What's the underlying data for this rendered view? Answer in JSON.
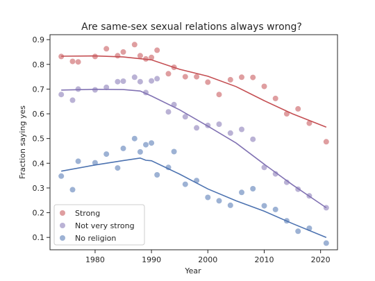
{
  "chart_data": {
    "type": "scatter",
    "title": "Are same-sex sexual relations always wrong?",
    "xlabel": "Year",
    "ylabel": "Fraction saying yes",
    "xlim": [
      1972,
      2023
    ],
    "ylim": [
      0.05,
      0.92
    ],
    "xticks": [
      1980,
      1990,
      2000,
      2010,
      2020
    ],
    "yticks": [
      0.1,
      0.2,
      0.3,
      0.4,
      0.5,
      0.6,
      0.7,
      0.8,
      0.9
    ],
    "grid": false,
    "legend_position": "lower-left",
    "series": [
      {
        "name": "Strong",
        "color": "#C44E52",
        "points": [
          [
            1974,
            0.832
          ],
          [
            1976,
            0.812
          ],
          [
            1977,
            0.81
          ],
          [
            1980,
            0.832
          ],
          [
            1982,
            0.863
          ],
          [
            1984,
            0.835
          ],
          [
            1985,
            0.85
          ],
          [
            1987,
            0.88
          ],
          [
            1988,
            0.835
          ],
          [
            1989,
            0.822
          ],
          [
            1990,
            0.828
          ],
          [
            1991,
            0.857
          ],
          [
            1993,
            0.762
          ],
          [
            1994,
            0.788
          ],
          [
            1996,
            0.75
          ],
          [
            1998,
            0.75
          ],
          [
            2000,
            0.728
          ],
          [
            2002,
            0.678
          ],
          [
            2004,
            0.738
          ],
          [
            2006,
            0.748
          ],
          [
            2008,
            0.747
          ],
          [
            2010,
            0.711
          ],
          [
            2012,
            0.662
          ],
          [
            2014,
            0.6
          ],
          [
            2016,
            0.62
          ],
          [
            2018,
            0.562
          ],
          [
            2021,
            0.487
          ]
        ],
        "trend": [
          [
            1974,
            0.833
          ],
          [
            1980,
            0.834
          ],
          [
            1985,
            0.83
          ],
          [
            1990,
            0.818
          ],
          [
            1995,
            0.78
          ],
          [
            2000,
            0.752
          ],
          [
            2005,
            0.71
          ],
          [
            2010,
            0.653
          ],
          [
            2015,
            0.6
          ],
          [
            2021,
            0.546
          ]
        ]
      },
      {
        "name": "Not very strong",
        "color": "#8172B3",
        "points": [
          [
            1974,
            0.678
          ],
          [
            1976,
            0.655
          ],
          [
            1977,
            0.7
          ],
          [
            1980,
            0.697
          ],
          [
            1982,
            0.707
          ],
          [
            1984,
            0.73
          ],
          [
            1985,
            0.732
          ],
          [
            1987,
            0.748
          ],
          [
            1988,
            0.73
          ],
          [
            1989,
            0.686
          ],
          [
            1990,
            0.733
          ],
          [
            1991,
            0.742
          ],
          [
            1993,
            0.608
          ],
          [
            1994,
            0.637
          ],
          [
            1996,
            0.588
          ],
          [
            1998,
            0.543
          ],
          [
            2000,
            0.553
          ],
          [
            2002,
            0.558
          ],
          [
            2004,
            0.522
          ],
          [
            2006,
            0.537
          ],
          [
            2008,
            0.497
          ],
          [
            2010,
            0.383
          ],
          [
            2012,
            0.357
          ],
          [
            2014,
            0.323
          ],
          [
            2016,
            0.295
          ],
          [
            2018,
            0.268
          ],
          [
            2021,
            0.22
          ]
        ],
        "trend": [
          [
            1974,
            0.696
          ],
          [
            1980,
            0.699
          ],
          [
            1985,
            0.698
          ],
          [
            1988,
            0.692
          ],
          [
            1990,
            0.672
          ],
          [
            1995,
            0.616
          ],
          [
            2000,
            0.55
          ],
          [
            2005,
            0.482
          ],
          [
            2010,
            0.396
          ],
          [
            2015,
            0.313
          ],
          [
            2021,
            0.22
          ]
        ]
      },
      {
        "name": "No religion",
        "color": "#4C72B0",
        "points": [
          [
            1974,
            0.348
          ],
          [
            1976,
            0.293
          ],
          [
            1977,
            0.408
          ],
          [
            1980,
            0.402
          ],
          [
            1982,
            0.437
          ],
          [
            1984,
            0.381
          ],
          [
            1985,
            0.46
          ],
          [
            1987,
            0.5
          ],
          [
            1988,
            0.446
          ],
          [
            1989,
            0.475
          ],
          [
            1990,
            0.482
          ],
          [
            1991,
            0.353
          ],
          [
            1993,
            0.383
          ],
          [
            1994,
            0.447
          ],
          [
            1996,
            0.315
          ],
          [
            1998,
            0.33
          ],
          [
            2000,
            0.262
          ],
          [
            2002,
            0.248
          ],
          [
            2004,
            0.23
          ],
          [
            2006,
            0.282
          ],
          [
            2008,
            0.297
          ],
          [
            2010,
            0.228
          ],
          [
            2012,
            0.213
          ],
          [
            2014,
            0.167
          ],
          [
            2016,
            0.125
          ],
          [
            2018,
            0.137
          ],
          [
            2021,
            0.077
          ]
        ],
        "trend": [
          [
            1974,
            0.368
          ],
          [
            1980,
            0.393
          ],
          [
            1985,
            0.411
          ],
          [
            1988,
            0.421
          ],
          [
            1989,
            0.412
          ],
          [
            1990,
            0.41
          ],
          [
            1995,
            0.356
          ],
          [
            2000,
            0.296
          ],
          [
            2005,
            0.248
          ],
          [
            2010,
            0.206
          ],
          [
            2015,
            0.156
          ],
          [
            2021,
            0.1
          ]
        ]
      }
    ]
  }
}
